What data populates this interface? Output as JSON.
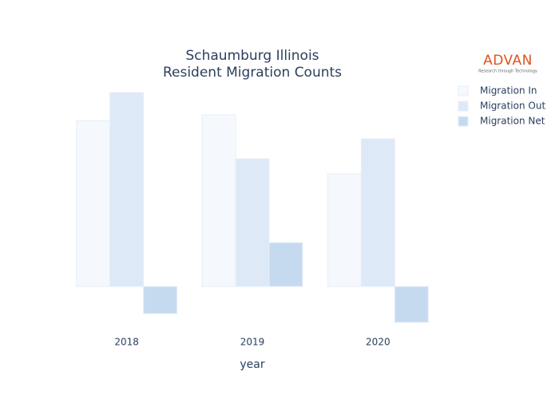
{
  "chart_data": {
    "type": "bar",
    "title_lines": [
      "Schaumburg Illinois",
      "Resident Migration Counts"
    ],
    "x_label": "year",
    "categories": [
      "2018",
      "2019",
      "2020"
    ],
    "series": [
      {
        "name": "Migration In",
        "color": "#f5f9fd",
        "values": [
          208,
          215,
          141
        ]
      },
      {
        "name": "Migration Out",
        "color": "#dde9f6",
        "values": [
          243,
          160,
          185
        ]
      },
      {
        "name": "Migration Net",
        "color": "#c6daef",
        "values": [
          -34,
          55,
          -45
        ]
      }
    ],
    "ylim": [
      -60,
      258
    ],
    "logo": {
      "name": "ADVAN",
      "tagline": "Research through Technology",
      "color": "#e0521e"
    }
  }
}
